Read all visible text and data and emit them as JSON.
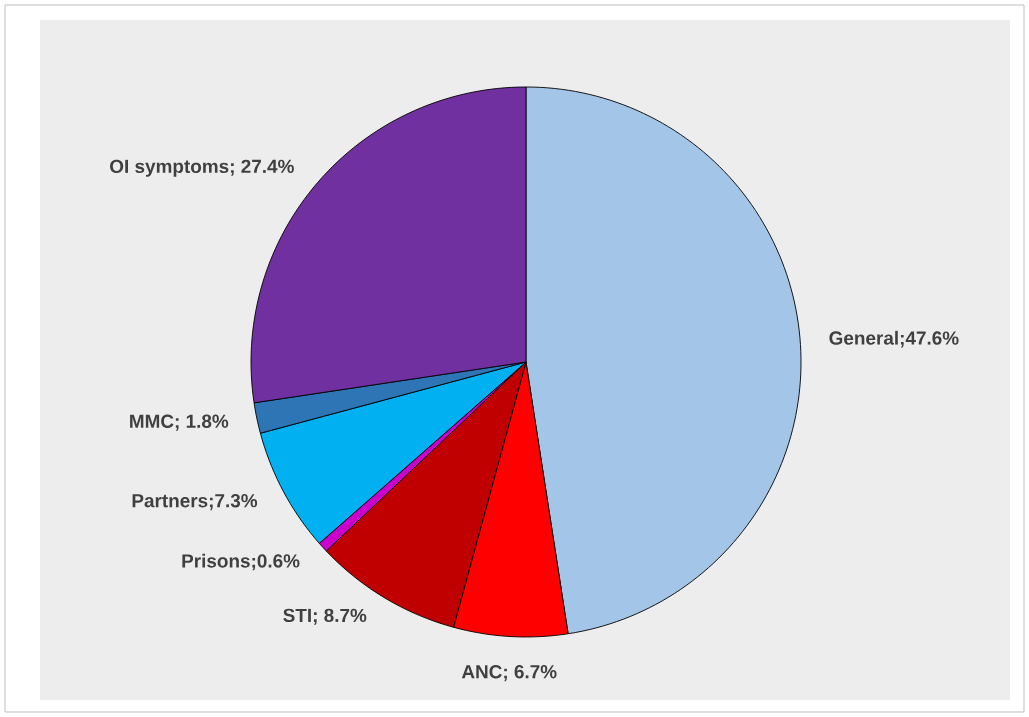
{
  "chart_data": {
    "type": "pie",
    "categories": [
      "General",
      "ANC",
      "STI",
      "Prisons",
      "Partners",
      "MMC",
      "OI symptoms"
    ],
    "values": [
      47.6,
      6.7,
      8.7,
      0.6,
      7.3,
      1.8,
      27.4
    ],
    "colors": [
      "#a3c6e8",
      "#ff0000",
      "#c00000",
      "#cc00cc",
      "#00b0f0",
      "#2e75b6",
      "#7030a0"
    ],
    "value_labels": [
      ";47.6%",
      "; 6.7%",
      "; 8.7%",
      ";0.6%",
      ";7.3%",
      "; 1.8%",
      "; 27.4%"
    ]
  }
}
